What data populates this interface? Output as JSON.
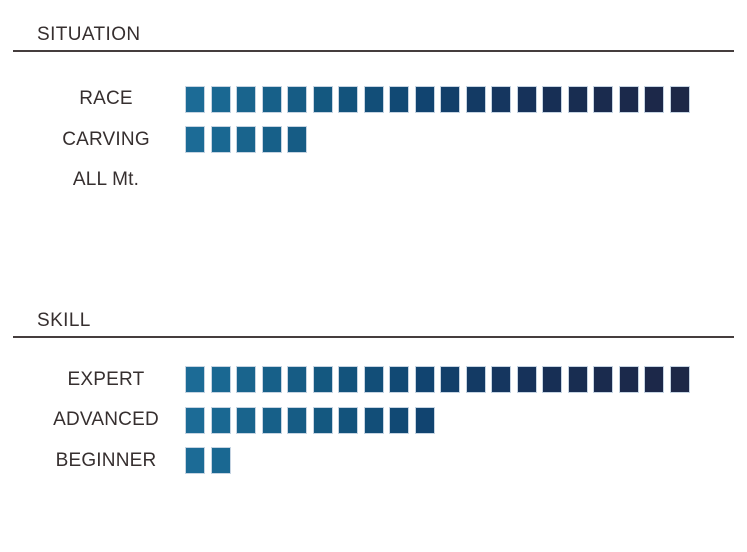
{
  "palette": {
    "background": "#ffffff",
    "text": "#362f2f",
    "rule": "#453d3d",
    "square_border": "#c6d4e2",
    "ramp": [
      "#1c6b96",
      "#1a6892",
      "#19648d",
      "#176089",
      "#165c85",
      "#145880",
      "#13537c",
      "#124e78",
      "#114974",
      "#114470",
      "#123f6a",
      "#133a64",
      "#15365f",
      "#16325a",
      "#172f55",
      "#182d51",
      "#1a2b4e",
      "#1b294b",
      "#1c2849",
      "#1d2847"
    ]
  },
  "chart_data": {
    "type": "bar",
    "subtype": "segmented-block-rating",
    "max_blocks": 20,
    "grid": false,
    "legend_position": "none",
    "sections": [
      {
        "title": "SITUATION",
        "categories": [
          "RACE",
          "CARVING",
          "ALL Mt."
        ],
        "values": [
          20,
          5,
          0
        ]
      },
      {
        "title": "SKILL",
        "categories": [
          "EXPERT",
          "ADVANCED",
          "BEGINNER"
        ],
        "values": [
          20,
          10,
          2
        ]
      }
    ]
  }
}
